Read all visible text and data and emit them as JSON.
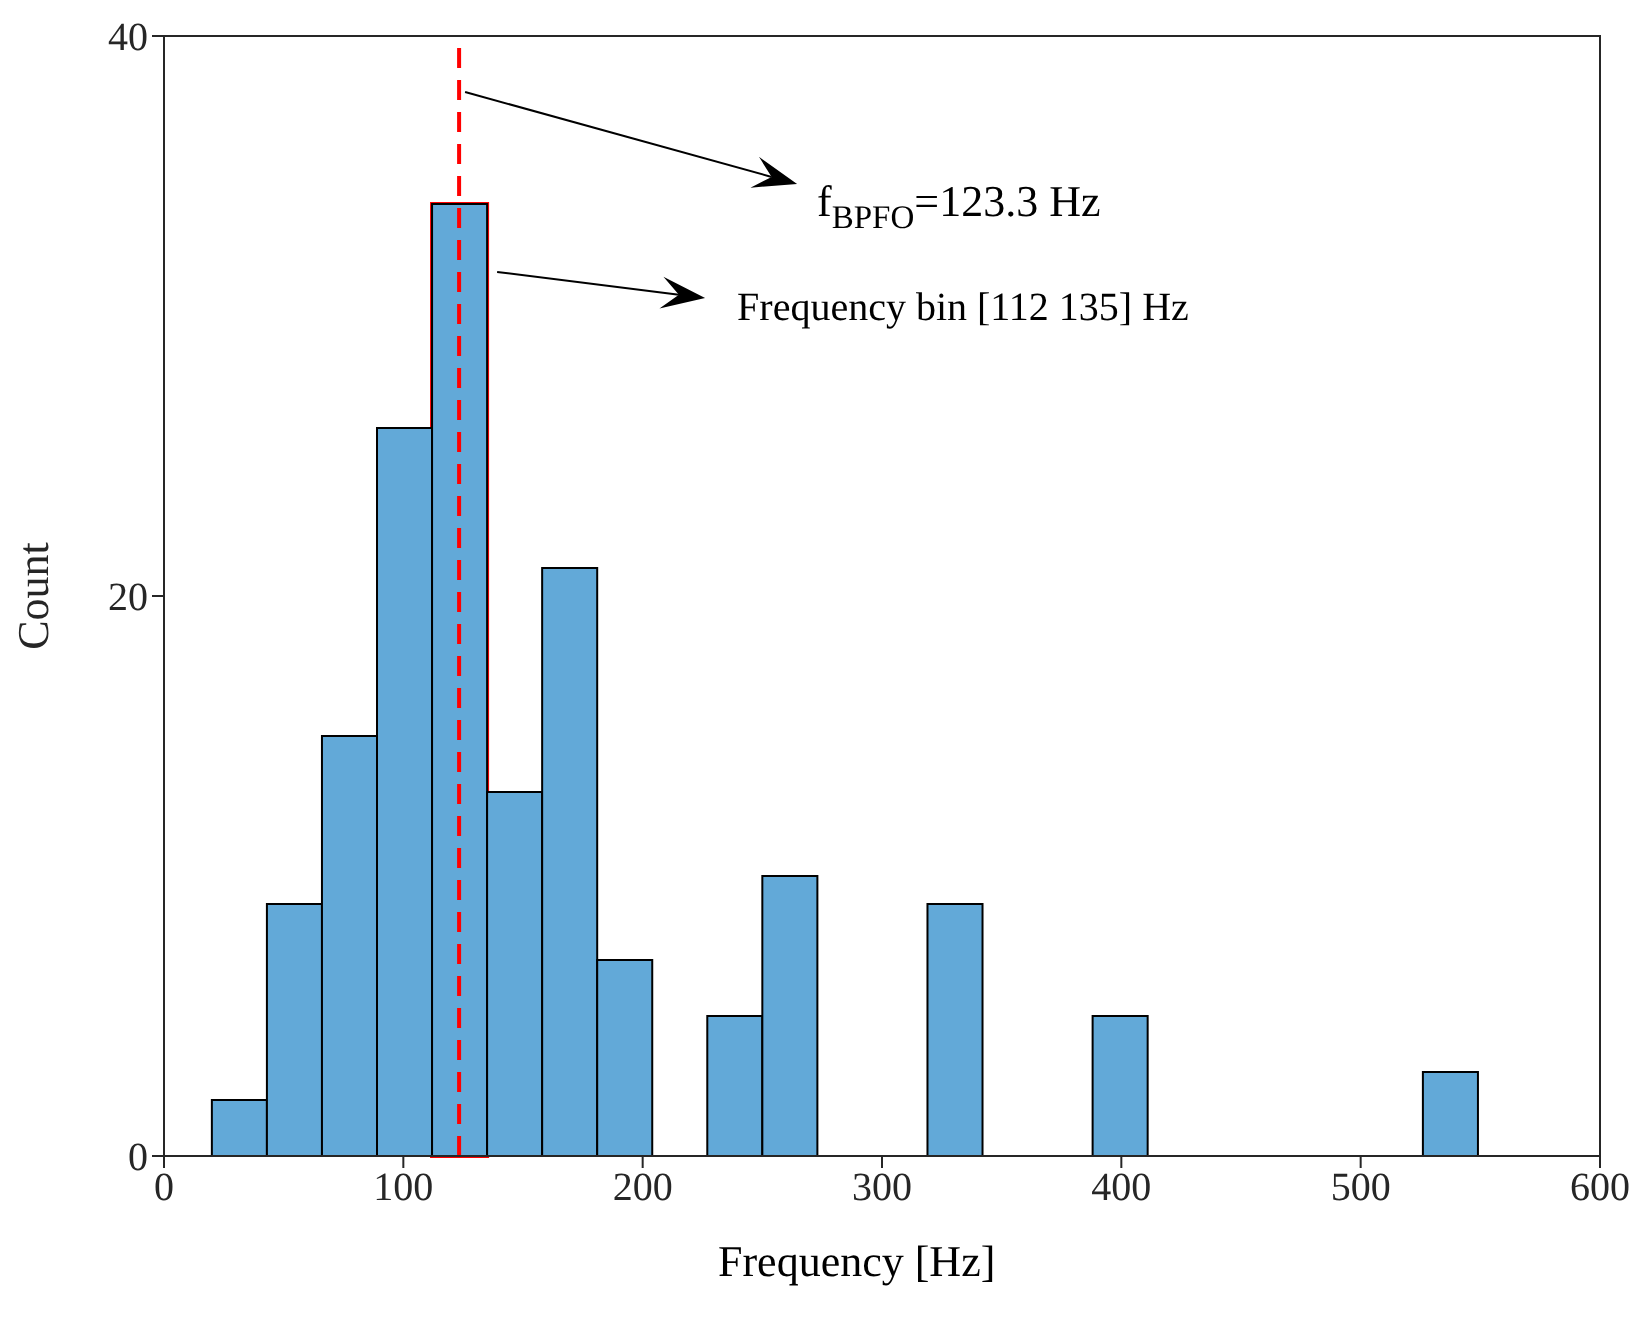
{
  "chart_data": {
    "type": "histogram",
    "xlabel": "Frequency [Hz]",
    "ylabel": "Count",
    "bins": [
      20,
      43,
      66,
      89,
      112,
      135,
      158,
      181,
      204,
      227,
      250,
      273,
      319,
      342,
      388,
      411,
      526,
      549
    ],
    "values": [
      2,
      9,
      15,
      26,
      34,
      13,
      21,
      7,
      0,
      5,
      10,
      0,
      9,
      0,
      5,
      0,
      3
    ],
    "color": "#62a9d8",
    "xlim": [
      0,
      600
    ],
    "xticks": [
      0,
      100,
      200,
      300,
      400,
      500,
      600
    ],
    "ylim": [
      0,
      40
    ],
    "yticks": [
      0,
      20,
      40
    ],
    "grid": false,
    "ref_lines": [
      {
        "axis": "x",
        "value": 123.3,
        "label": "f$_{BPFO}$=123.3 Hz",
        "color": "#ff0000",
        "line_style": "dashed"
      }
    ],
    "annotations": [
      "Frequency bin [112 135] Hz"
    ]
  }
}
